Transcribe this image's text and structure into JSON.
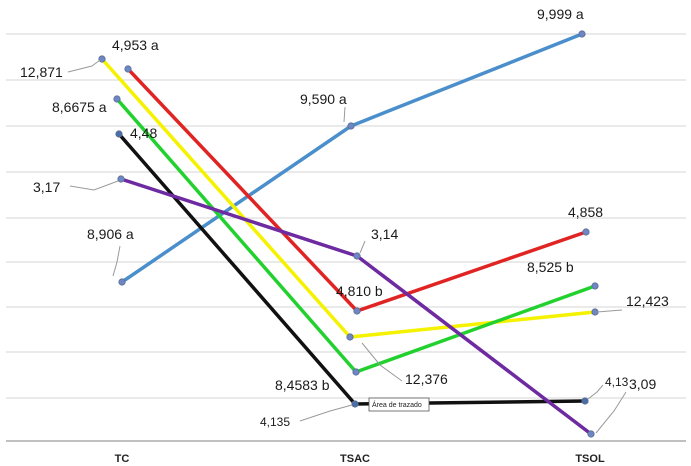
{
  "chart_data": {
    "type": "line",
    "categories": [
      "TC",
      "TSAC",
      "TSOL"
    ],
    "grid": true,
    "series": [
      {
        "color": "#4a8fcc",
        "values": [
          8.906,
          9.59,
          9.999
        ],
        "labels": [
          "8,906 a",
          "9,590 a",
          "9,999 a"
        ]
      },
      {
        "color": "#e02424",
        "values": [
          4.953,
          4.81,
          4.858
        ],
        "labels": [
          "4,953 a",
          "4,810 b",
          "4,858"
        ]
      },
      {
        "color": "#f5f200",
        "values": [
          12.871,
          12.376,
          12.423
        ],
        "labels": [
          "12,871",
          "12,376",
          "12,423"
        ]
      },
      {
        "color": "#22d12e",
        "values": [
          8.6675,
          8.4583,
          8.525
        ],
        "labels": [
          "8,6675 a",
          "8,4583 b",
          "8,525 b"
        ]
      },
      {
        "color": "#111111",
        "values": [
          4.48,
          4.135,
          4.13
        ],
        "labels": [
          "4,48",
          "4,135",
          "4,13"
        ]
      },
      {
        "color": "#6e2aa0",
        "values": [
          3.17,
          3.14,
          3.09
        ],
        "labels": [
          "3,17",
          "3,14",
          "3,09"
        ]
      }
    ],
    "tooltip": "Área de trazado"
  }
}
